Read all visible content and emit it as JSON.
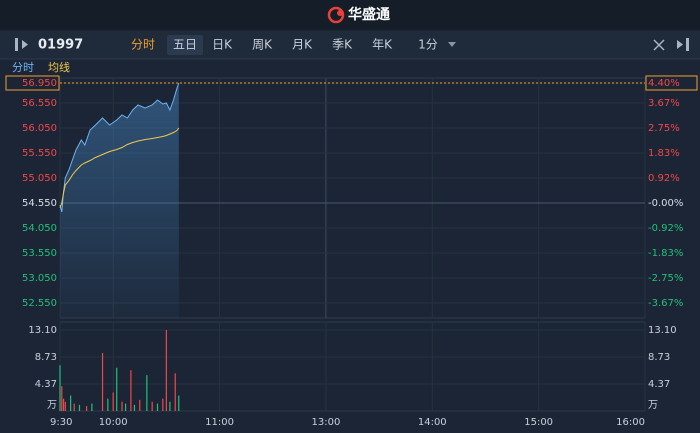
{
  "header": {
    "brand": "华盛通"
  },
  "toolbar": {
    "symbol": "01997",
    "tabs": [
      "分时",
      "五日",
      "日K",
      "周K",
      "月K",
      "季K",
      "年K",
      "1分"
    ]
  },
  "chart_data": [
    {
      "type": "line",
      "x": [
        "9:30",
        "9:31",
        "9:32",
        "9:33",
        "9:35",
        "9:37",
        "9:39",
        "9:42",
        "9:44",
        "9:47",
        "9:50",
        "9:54",
        "9:58",
        "10:02",
        "10:05",
        "10:08",
        "10:11",
        "10:14",
        "10:18",
        "10:22",
        "10:25",
        "10:28",
        "10:30",
        "10:32",
        "10:34",
        "10:36",
        "10:37"
      ],
      "series": [
        {
          "name": "分时",
          "color": "#6fb3f2",
          "values": [
            54.51,
            54.37,
            54.77,
            55.05,
            55.21,
            55.41,
            55.61,
            55.81,
            55.71,
            56.01,
            56.11,
            56.25,
            56.11,
            56.21,
            56.31,
            56.25,
            56.41,
            56.51,
            56.45,
            56.51,
            56.61,
            56.53,
            56.55,
            56.41,
            56.61,
            56.85,
            56.95
          ]
        },
        {
          "name": "均线",
          "color": "#f2c94c",
          "values": [
            54.45,
            54.55,
            54.75,
            54.91,
            55.0,
            55.11,
            55.2,
            55.31,
            55.35,
            55.4,
            55.46,
            55.52,
            55.58,
            55.62,
            55.66,
            55.72,
            55.76,
            55.79,
            55.82,
            55.84,
            55.86,
            55.88,
            55.9,
            55.93,
            55.96,
            56.0,
            56.05
          ]
        }
      ],
      "xlim": [
        "9:30",
        "16:00"
      ],
      "xticks": [
        "9:30",
        "10:00",
        "11:00",
        "13:00",
        "14:00",
        "15:00",
        "16:00"
      ],
      "ylim": [
        52.25,
        57.05
      ],
      "yticks": [
        {
          "value": 56.95,
          "label": "56.950"
        },
        {
          "value": 56.55,
          "label": "56.550"
        },
        {
          "value": 56.05,
          "label": "56.050"
        },
        {
          "value": 55.55,
          "label": "55.550"
        },
        {
          "value": 55.05,
          "label": "55.050"
        },
        {
          "value": 54.55,
          "label": "54.550"
        },
        {
          "value": 54.05,
          "label": "54.050"
        },
        {
          "value": 53.55,
          "label": "53.550"
        },
        {
          "value": 53.05,
          "label": "53.050"
        },
        {
          "value": 52.55,
          "label": "52.550"
        }
      ],
      "y2lim": [
        -4.216,
        4.583
      ],
      "y2ticks": [
        {
          "value": 4.4,
          "label": "4.40%"
        },
        {
          "value": 3.67,
          "label": "3.67%"
        },
        {
          "value": 2.75,
          "label": "2.75%"
        },
        {
          "value": 1.83,
          "label": "1.83%"
        },
        {
          "value": 0.92,
          "label": "0.92%"
        },
        {
          "value": 0,
          "label": "-0.00%"
        },
        {
          "value": -0.92,
          "label": "-0.92%"
        },
        {
          "value": -1.83,
          "label": "-1.83%"
        },
        {
          "value": -2.75,
          "label": "-2.75%"
        },
        {
          "value": -3.67,
          "label": "-3.67%"
        }
      ],
      "grid": true
    },
    {
      "type": "bar",
      "x": [
        "9:30",
        "9:31",
        "9:32",
        "9:33",
        "9:36",
        "9:38",
        "9:41",
        "9:45",
        "9:48",
        "9:54",
        "9:57",
        "10:00",
        "10:02",
        "10:05",
        "10:07",
        "10:10",
        "10:12",
        "10:15",
        "10:19",
        "10:22",
        "10:25",
        "10:28",
        "10:30",
        "10:32",
        "10:35",
        "10:37"
      ],
      "values": [
        7.4,
        4.0,
        2.0,
        1.5,
        2.5,
        1.2,
        1.0,
        0.8,
        1.2,
        9.4,
        2.0,
        3.0,
        7.0,
        1.5,
        1.2,
        6.6,
        1.0,
        1.8,
        5.8,
        1.5,
        1.2,
        2.0,
        13.1,
        1.5,
        6.1,
        2.5
      ],
      "colors": [
        "#22c07a",
        "#f04848",
        "#f04848",
        "#f04848",
        "#22c07a",
        "#f04848",
        "#22c07a",
        "#f04848",
        "#22c07a",
        "#f04848",
        "#22c07a",
        "#f04848",
        "#22c07a",
        "#f04848",
        "#22c07a",
        "#f04848",
        "#22c07a",
        "#f04848",
        "#22c07a",
        "#f04848",
        "#22c07a",
        "#f04848",
        "#f04848",
        "#22c07a",
        "#f04848",
        "#22c07a"
      ],
      "ylim": [
        0,
        14.4
      ],
      "yticks": [
        {
          "value": 13.1,
          "label": "13.10"
        },
        8.73,
        4.37
      ],
      "unit": "万",
      "grid": true
    }
  ]
}
